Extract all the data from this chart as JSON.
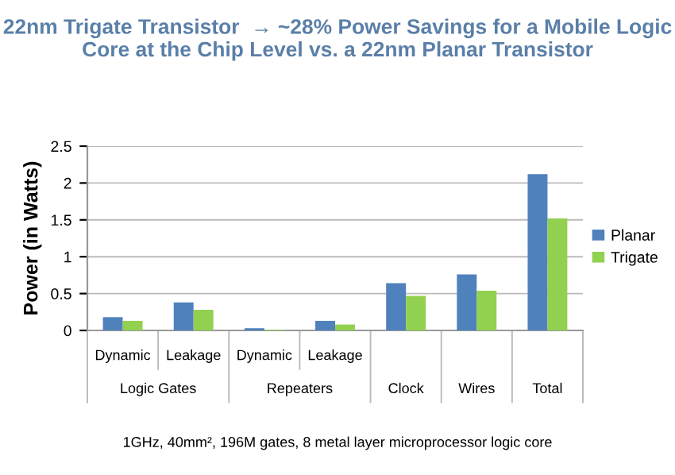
{
  "chart_data": {
    "type": "bar",
    "title": "22nm Trigate Transistor  → ~28% Power Savings for a Mobile Logic Core at the Chip Level vs. a 22nm Planar Transistor",
    "ylabel": "Power (in Watts)",
    "categories": [
      "Dynamic",
      "Leakage",
      "Dynamic",
      "Leakage",
      "Clock",
      "Wires",
      "Total"
    ],
    "series": [
      {
        "name": "Planar",
        "color": "#4f81bd",
        "values": [
          0.18,
          0.38,
          0.03,
          0.13,
          0.64,
          0.76,
          2.12
        ]
      },
      {
        "name": "Trigate",
        "color": "#92d050",
        "values": [
          0.13,
          0.28,
          0.01,
          0.08,
          0.47,
          0.54,
          1.52
        ]
      }
    ],
    "annotations": [
      "Logic Gates",
      "Repeaters",
      "1GHz, 40mm², 196M gates, 8 metal layer microprocessor logic core"
    ],
    "ylim": [
      0,
      2.5
    ],
    "yticks": [
      0,
      0.5,
      1,
      1.5,
      2,
      2.5
    ],
    "grid": "y",
    "legend": "right"
  }
}
